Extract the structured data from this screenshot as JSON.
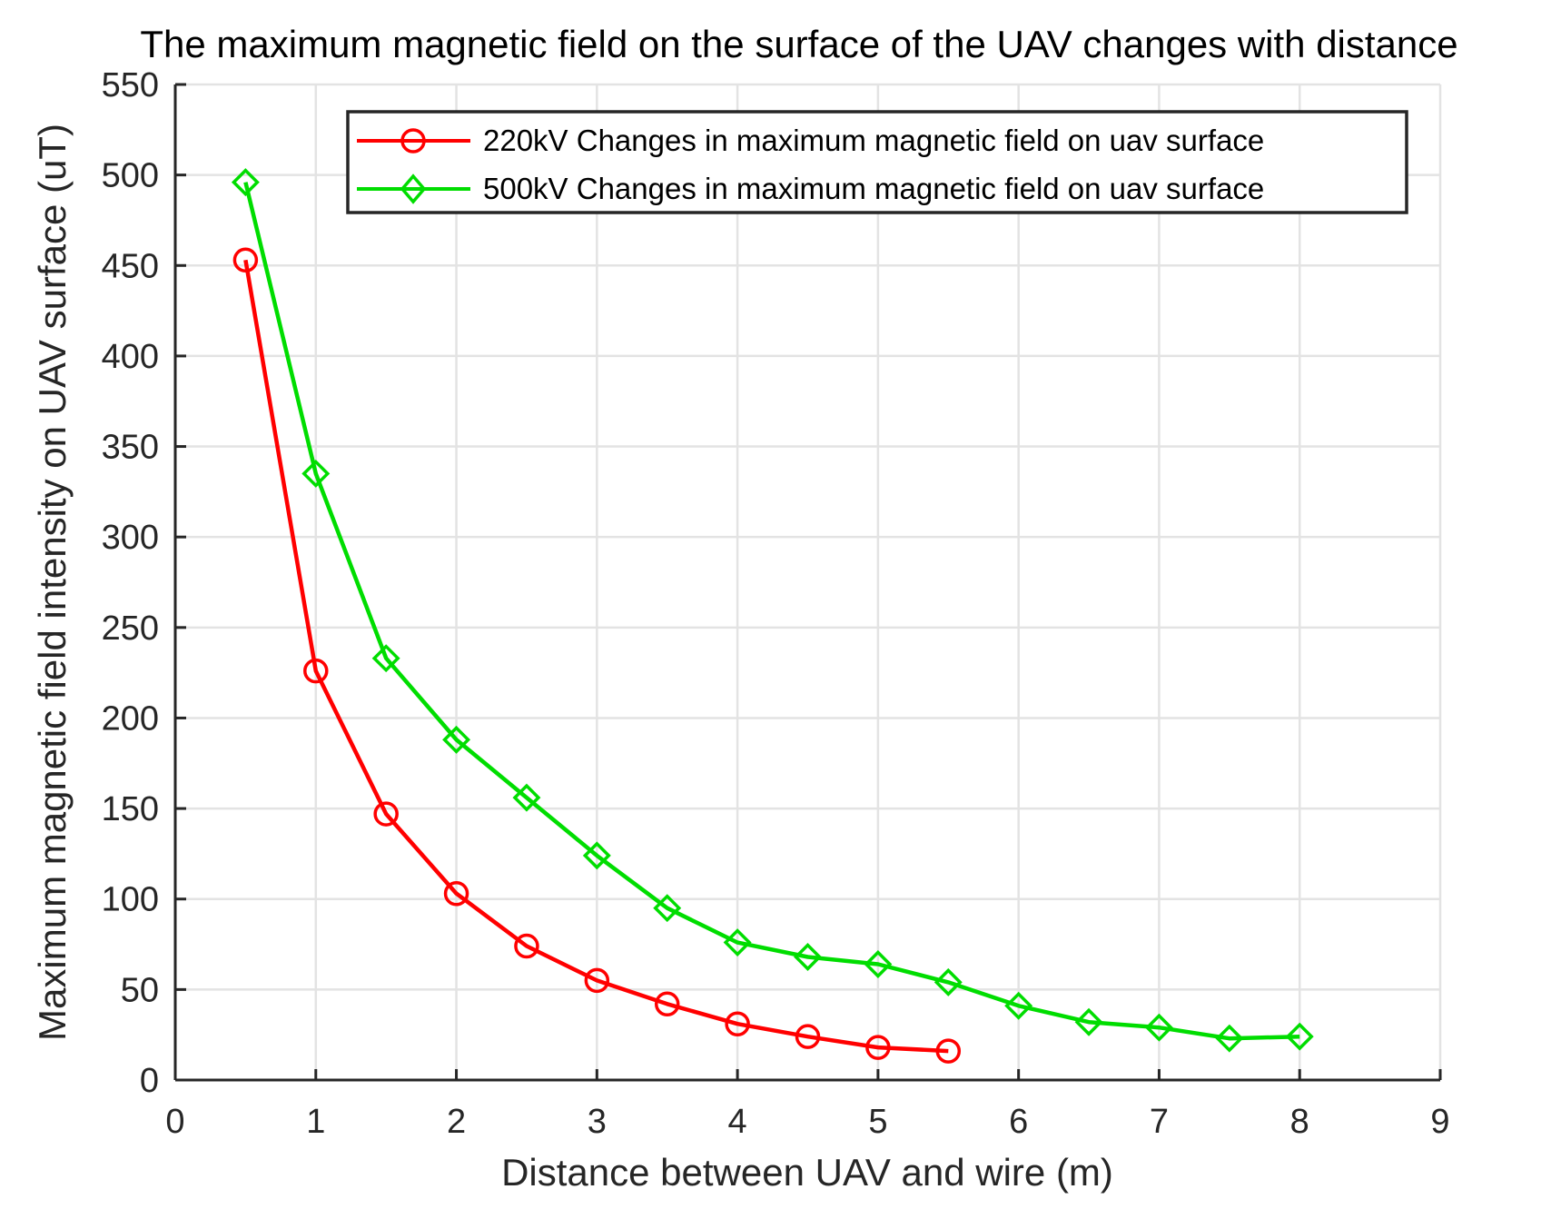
{
  "chart_data": {
    "type": "line",
    "title": "The maximum magnetic field on the surface of the UAV changes with distance",
    "xlabel": "Distance between UAV and wire (m)",
    "ylabel": "Maximum magnetic field intensity on UAV surface (uT)",
    "xlim": [
      0,
      9
    ],
    "ylim": [
      0,
      550
    ],
    "xticks": [
      0,
      1,
      2,
      3,
      4,
      5,
      6,
      7,
      8,
      9
    ],
    "yticks": [
      0,
      50,
      100,
      150,
      200,
      250,
      300,
      350,
      400,
      450,
      500,
      550
    ],
    "xtick_labels": [
      "0",
      "1",
      "2",
      "3",
      "4",
      "5",
      "6",
      "7",
      "8",
      "9"
    ],
    "ytick_labels": [
      "0",
      "50",
      "100",
      "150",
      "200",
      "250",
      "300",
      "350",
      "400",
      "450",
      "500",
      "550"
    ],
    "grid": true,
    "legend_position": "top-right",
    "series": [
      {
        "name": "220kV Changes in maximum magnetic field on uav surface",
        "color": "#ff0000",
        "marker": "circle",
        "x": [
          0.5,
          1,
          1.5,
          2,
          2.5,
          3,
          3.5,
          4,
          4.5,
          5,
          5.5
        ],
        "y": [
          453,
          226,
          147,
          103,
          74,
          55,
          42,
          31,
          24,
          18,
          16
        ]
      },
      {
        "name": "500kV Changes in maximum magnetic field on uav surface",
        "color": "#00dd00",
        "marker": "diamond",
        "x": [
          0.5,
          1,
          1.5,
          2,
          2.5,
          3,
          3.5,
          4,
          4.5,
          5,
          5.5,
          6,
          6.5,
          7,
          7.5,
          8
        ],
        "y": [
          496,
          335,
          233,
          188,
          156,
          124,
          95,
          76,
          68,
          64,
          54,
          41,
          32,
          29,
          23,
          24
        ]
      }
    ]
  }
}
